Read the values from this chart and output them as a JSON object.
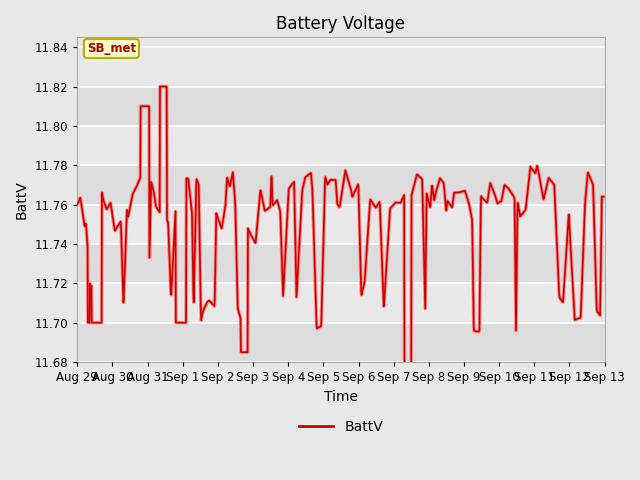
{
  "title": "Battery Voltage",
  "xlabel": "Time",
  "ylabel": "BattV",
  "legend_label": "BattV",
  "line_color": "#cc0000",
  "line_color2": "#ff8888",
  "fig_bg_color": "#e8e8e8",
  "plot_bg_color": "#e8e8e8",
  "band_color_dark": "#d8d8d8",
  "band_color_light": "#e8e8e8",
  "ylim": [
    11.68,
    11.845
  ],
  "yticks": [
    11.68,
    11.7,
    11.72,
    11.74,
    11.76,
    11.78,
    11.8,
    11.82,
    11.84
  ],
  "xtick_labels": [
    "Aug 29",
    "Aug 30",
    "Aug 31",
    "Sep 1",
    "Sep 2",
    "Sep 3",
    "Sep 4",
    "Sep 5",
    "Sep 6",
    "Sep 7",
    "Sep 8",
    "Sep 9",
    "Sep 10",
    "Sep 11",
    "Sep 12",
    "Sep 13"
  ],
  "annotation_text": "SB_met",
  "annotation_color": "#aa0000",
  "annotation_bg": "#ffffcc",
  "annotation_border": "#bbaa00"
}
